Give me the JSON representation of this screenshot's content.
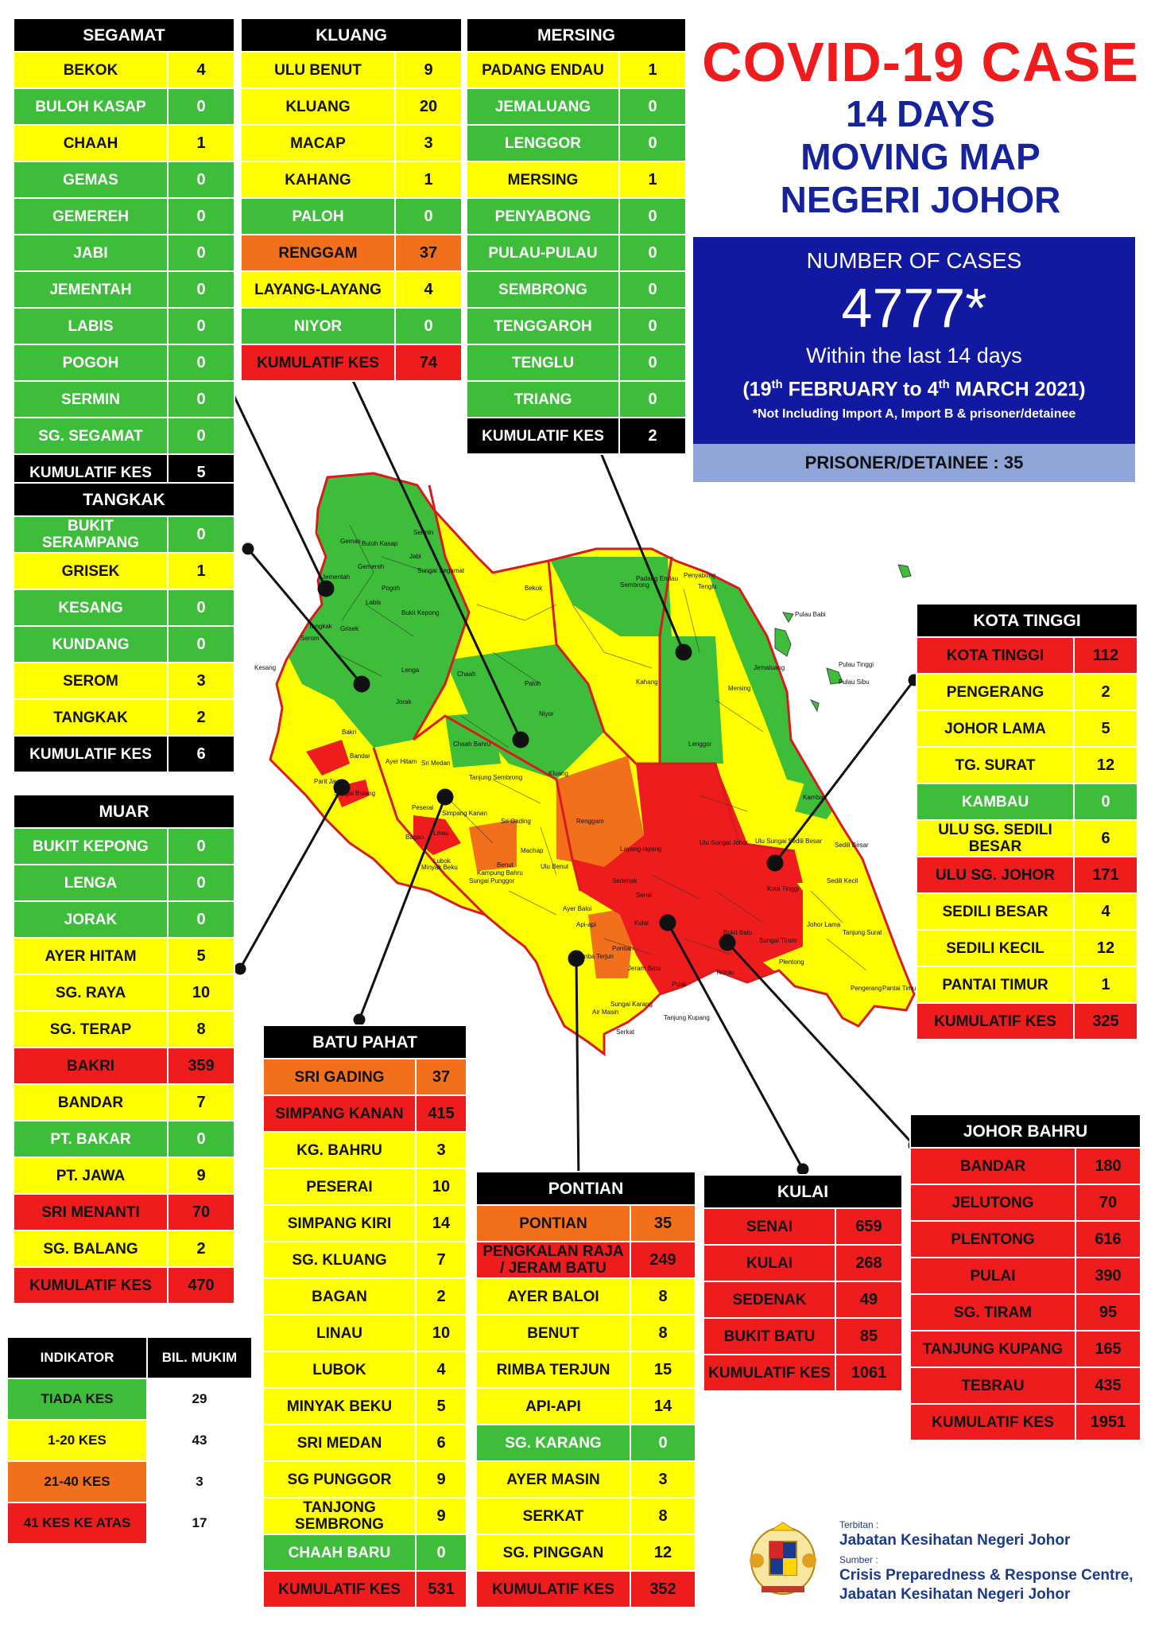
{
  "header": {
    "line1": "COVID-19 CASE",
    "line2": "14 DAYS",
    "line3": "MOVING MAP",
    "line4": "NEGERI JOHOR"
  },
  "summary": {
    "label": "NUMBER OF CASES",
    "total": "4777*",
    "within": "Within the last 14 days",
    "range_open": "(19",
    "range_sup1": "th",
    "range_mid": " FEBRUARY to 4",
    "range_sup2": "th",
    "range_close": " MARCH 2021)",
    "note": "*Not Including Import A, Import B & prisoner/detainee",
    "prisoner": "PRISONER/DETAINEE : 35"
  },
  "districts": [
    {
      "id": "segamat",
      "name": "SEGAMAT",
      "rows": [
        {
          "mukim": "BEKOK",
          "cases": "4",
          "level": "y"
        },
        {
          "mukim": "BULOH KASAP",
          "cases": "0",
          "level": "g"
        },
        {
          "mukim": "CHAAH",
          "cases": "1",
          "level": "y"
        },
        {
          "mukim": "GEMAS",
          "cases": "0",
          "level": "g"
        },
        {
          "mukim": "GEMEREH",
          "cases": "0",
          "level": "g"
        },
        {
          "mukim": "JABI",
          "cases": "0",
          "level": "g"
        },
        {
          "mukim": "JEMENTAH",
          "cases": "0",
          "level": "g"
        },
        {
          "mukim": "LABIS",
          "cases": "0",
          "level": "g"
        },
        {
          "mukim": "POGOH",
          "cases": "0",
          "level": "g"
        },
        {
          "mukim": "SERMIN",
          "cases": "0",
          "level": "g"
        },
        {
          "mukim": "SG. SEGAMAT",
          "cases": "0",
          "level": "g"
        },
        {
          "mukim": "KUMULATIF KES",
          "cases": "5",
          "level": "k"
        }
      ]
    },
    {
      "id": "kluang",
      "name": "KLUANG",
      "rows": [
        {
          "mukim": "ULU BENUT",
          "cases": "9",
          "level": "y"
        },
        {
          "mukim": "KLUANG",
          "cases": "20",
          "level": "y"
        },
        {
          "mukim": "MACAP",
          "cases": "3",
          "level": "y"
        },
        {
          "mukim": "KAHANG",
          "cases": "1",
          "level": "y"
        },
        {
          "mukim": "PALOH",
          "cases": "0",
          "level": "g"
        },
        {
          "mukim": "RENGGAM",
          "cases": "37",
          "level": "o"
        },
        {
          "mukim": "LAYANG-LAYANG",
          "cases": "4",
          "level": "y"
        },
        {
          "mukim": "NIYOR",
          "cases": "0",
          "level": "g"
        },
        {
          "mukim": "KUMULATIF KES",
          "cases": "74",
          "level": "r"
        }
      ]
    },
    {
      "id": "mersing",
      "name": "MERSING",
      "rows": [
        {
          "mukim": "PADANG ENDAU",
          "cases": "1",
          "level": "y"
        },
        {
          "mukim": "JEMALUANG",
          "cases": "0",
          "level": "g"
        },
        {
          "mukim": "LENGGOR",
          "cases": "0",
          "level": "g"
        },
        {
          "mukim": "MERSING",
          "cases": "1",
          "level": "y"
        },
        {
          "mukim": "PENYABONG",
          "cases": "0",
          "level": "g"
        },
        {
          "mukim": "PULAU-PULAU",
          "cases": "0",
          "level": "g"
        },
        {
          "mukim": "SEMBRONG",
          "cases": "0",
          "level": "g"
        },
        {
          "mukim": "TENGGAROH",
          "cases": "0",
          "level": "g"
        },
        {
          "mukim": "TENGLU",
          "cases": "0",
          "level": "g"
        },
        {
          "mukim": "TRIANG",
          "cases": "0",
          "level": "g"
        },
        {
          "mukim": "KUMULATIF KES",
          "cases": "2",
          "level": "k"
        }
      ]
    },
    {
      "id": "tangkak",
      "name": "TANGKAK",
      "rows": [
        {
          "mukim": "BUKIT SERAMPANG",
          "cases": "0",
          "level": "g"
        },
        {
          "mukim": "GRISEK",
          "cases": "1",
          "level": "y"
        },
        {
          "mukim": "KESANG",
          "cases": "0",
          "level": "g"
        },
        {
          "mukim": "KUNDANG",
          "cases": "0",
          "level": "g"
        },
        {
          "mukim": "SEROM",
          "cases": "3",
          "level": "y"
        },
        {
          "mukim": "TANGKAK",
          "cases": "2",
          "level": "y"
        },
        {
          "mukim": "KUMULATIF KES",
          "cases": "6",
          "level": "k"
        }
      ]
    },
    {
      "id": "muar",
      "name": "MUAR",
      "rows": [
        {
          "mukim": "BUKIT KEPONG",
          "cases": "0",
          "level": "g"
        },
        {
          "mukim": "LENGA",
          "cases": "0",
          "level": "g"
        },
        {
          "mukim": "JORAK",
          "cases": "0",
          "level": "g"
        },
        {
          "mukim": "AYER HITAM",
          "cases": "5",
          "level": "y"
        },
        {
          "mukim": "SG. RAYA",
          "cases": "10",
          "level": "y"
        },
        {
          "mukim": "SG. TERAP",
          "cases": "8",
          "level": "y"
        },
        {
          "mukim": "BAKRI",
          "cases": "359",
          "level": "r"
        },
        {
          "mukim": "BANDAR",
          "cases": "7",
          "level": "y"
        },
        {
          "mukim": "PT. BAKAR",
          "cases": "0",
          "level": "g"
        },
        {
          "mukim": "PT. JAWA",
          "cases": "9",
          "level": "y"
        },
        {
          "mukim": "SRI MENANTI",
          "cases": "70",
          "level": "r"
        },
        {
          "mukim": "SG. BALANG",
          "cases": "2",
          "level": "y"
        },
        {
          "mukim": "KUMULATIF KES",
          "cases": "470",
          "level": "r"
        }
      ]
    },
    {
      "id": "kotatinggi",
      "name": "KOTA TINGGI",
      "rows": [
        {
          "mukim": "KOTA TINGGI",
          "cases": "112",
          "level": "r"
        },
        {
          "mukim": "PENGERANG",
          "cases": "2",
          "level": "y"
        },
        {
          "mukim": "JOHOR LAMA",
          "cases": "5",
          "level": "y"
        },
        {
          "mukim": "TG. SURAT",
          "cases": "12",
          "level": "y"
        },
        {
          "mukim": "KAMBAU",
          "cases": "0",
          "level": "g"
        },
        {
          "mukim": "ULU SG. SEDILI BESAR",
          "cases": "6",
          "level": "y"
        },
        {
          "mukim": "ULU  SG. JOHOR",
          "cases": "171",
          "level": "r"
        },
        {
          "mukim": "SEDILI BESAR",
          "cases": "4",
          "level": "y"
        },
        {
          "mukim": "SEDILI KECIL",
          "cases": "12",
          "level": "y"
        },
        {
          "mukim": "PANTAI TIMUR",
          "cases": "1",
          "level": "y"
        },
        {
          "mukim": "KUMULATIF KES",
          "cases": "325",
          "level": "r"
        }
      ]
    },
    {
      "id": "batupahat",
      "name": "BATU PAHAT",
      "rows": [
        {
          "mukim": "SRI GADING",
          "cases": "37",
          "level": "o"
        },
        {
          "mukim": "SIMPANG KANAN",
          "cases": "415",
          "level": "r"
        },
        {
          "mukim": "KG. BAHRU",
          "cases": "3",
          "level": "y"
        },
        {
          "mukim": "PESERAI",
          "cases": "10",
          "level": "y"
        },
        {
          "mukim": "SIMPANG KIRI",
          "cases": "14",
          "level": "y"
        },
        {
          "mukim": "SG. KLUANG",
          "cases": "7",
          "level": "y"
        },
        {
          "mukim": "BAGAN",
          "cases": "2",
          "level": "y"
        },
        {
          "mukim": "LINAU",
          "cases": "10",
          "level": "y"
        },
        {
          "mukim": "LUBOK",
          "cases": "4",
          "level": "y"
        },
        {
          "mukim": "MINYAK BEKU",
          "cases": "5",
          "level": "y"
        },
        {
          "mukim": "SRI MEDAN",
          "cases": "6",
          "level": "y"
        },
        {
          "mukim": "SG PUNGGOR",
          "cases": "9",
          "level": "y"
        },
        {
          "mukim": "TANJONG SEMBRONG",
          "cases": "9",
          "level": "y"
        },
        {
          "mukim": "CHAAH BARU",
          "cases": "0",
          "level": "g"
        },
        {
          "mukim": "KUMULATIF KES",
          "cases": "531",
          "level": "r"
        }
      ]
    },
    {
      "id": "pontian",
      "name": "PONTIAN",
      "rows": [
        {
          "mukim": "PONTIAN",
          "cases": "35",
          "level": "o"
        },
        {
          "mukim": "PENGKALAN RAJA / JERAM BATU",
          "cases": "249",
          "level": "r"
        },
        {
          "mukim": "AYER BALOI",
          "cases": "8",
          "level": "y"
        },
        {
          "mukim": "BENUT",
          "cases": "8",
          "level": "y"
        },
        {
          "mukim": "RIMBA TERJUN",
          "cases": "15",
          "level": "y"
        },
        {
          "mukim": "API-API",
          "cases": "14",
          "level": "y"
        },
        {
          "mukim": "SG. KARANG",
          "cases": "0",
          "level": "g"
        },
        {
          "mukim": "AYER MASIN",
          "cases": "3",
          "level": "y"
        },
        {
          "mukim": "SERKAT",
          "cases": "8",
          "level": "y"
        },
        {
          "mukim": "SG. PINGGAN",
          "cases": "12",
          "level": "y"
        },
        {
          "mukim": "KUMULATIF KES",
          "cases": "352",
          "level": "r"
        }
      ]
    },
    {
      "id": "kulai",
      "name": "KULAI",
      "rows": [
        {
          "mukim": "SENAI",
          "cases": "659",
          "level": "r"
        },
        {
          "mukim": "KULAI",
          "cases": "268",
          "level": "r"
        },
        {
          "mukim": "SEDENAK",
          "cases": "49",
          "level": "r"
        },
        {
          "mukim": "BUKIT BATU",
          "cases": "85",
          "level": "r"
        },
        {
          "mukim": "KUMULATIF KES",
          "cases": "1061",
          "level": "r"
        }
      ]
    },
    {
      "id": "johorbahru",
      "name": "JOHOR BAHRU",
      "rows": [
        {
          "mukim": "BANDAR",
          "cases": "180",
          "level": "r"
        },
        {
          "mukim": "JELUTONG",
          "cases": "70",
          "level": "r"
        },
        {
          "mukim": "PLENTONG",
          "cases": "616",
          "level": "r"
        },
        {
          "mukim": "PULAI",
          "cases": "390",
          "level": "r"
        },
        {
          "mukim": "SG. TIRAM",
          "cases": "95",
          "level": "r"
        },
        {
          "mukim": "TANJUNG KUPANG",
          "cases": "165",
          "level": "r"
        },
        {
          "mukim": "TEBRAU",
          "cases": "435",
          "level": "r"
        },
        {
          "mukim": "KUMULATIF KES",
          "cases": "1951",
          "level": "r"
        }
      ]
    }
  ],
  "legend": {
    "head_indicator": "INDIKATOR",
    "head_count": "BIL. MUKIM",
    "rows": [
      {
        "label": "TIADA KES",
        "count": "29",
        "level": "g"
      },
      {
        "label": "1-20 KES",
        "count": "43",
        "level": "y"
      },
      {
        "label": "21-40 KES",
        "count": "3",
        "level": "o"
      },
      {
        "label": "41 KES KE ATAS",
        "count": "17",
        "level": "r"
      }
    ]
  },
  "credit": {
    "terbitan_label": "Terbitan :",
    "terbitan": "Jabatan Kesihatan Negeri Johor",
    "sumber_label": "Sumber :",
    "sumber1": "Crisis Preparedness & Response Centre,",
    "sumber2": "Jabatan Kesihatan Negeri Johor"
  },
  "map_labels": [
    "Gemas",
    "Buloh Kasap",
    "Jabi",
    "Sungai Segamat",
    "Bekok",
    "Sembrong",
    "Padang Endau",
    "Penyabong",
    "Tenglu",
    "Pulau Babi",
    "Pulau Tinggi",
    "Pulau Sibu",
    "Jementah",
    "Grisek",
    "Tangkak",
    "Serom",
    "Kesang",
    "Bukit Kepong",
    "Lenga",
    "Jorak",
    "Chaah",
    "Paloh",
    "Niyor",
    "Kahang",
    "Mersing",
    "Jemaluang",
    "Lenggor",
    "Chaah Bahru",
    "Ayer Hitam",
    "Sri Medan",
    "Tanjung Sembrong",
    "Kluang",
    "Renggam",
    "Sri Gading",
    "Machap",
    "Ulu Benut",
    "Layang-layang",
    "Ulu Sungai Johor",
    "Ulu Sungai Sedili Besar",
    "Sedili Besar",
    "Sedili Kecil",
    "Kota Tinggi",
    "Kambau",
    "Johor Lama",
    "Tanjung Surat",
    "Pengerang",
    "Pantai Timur",
    "Senai",
    "Kulai",
    "Sedenak",
    "Bukit Batu",
    "Plentong",
    "Tebrau",
    "Pulai",
    "Pontian",
    "Jeram Batu",
    "Serkat",
    "Tanjung Kupang",
    "Sungai Tiram",
    "Minyak Beku",
    "Benut",
    "Bagan",
    "Linau",
    "Lubok",
    "Peserai",
    "Simpang Kanan",
    "Ayer Baloi",
    "Api-api",
    "Bandar",
    "Bakri",
    "Parit Jawa",
    "Sungai Balang",
    "Sungai Punggor",
    "Sungai Karang",
    "Air Masin",
    "Pogoh",
    "Gemereh",
    "Labis",
    "Sermin",
    "Kampung Bahru",
    "Rimba Terjun"
  ]
}
